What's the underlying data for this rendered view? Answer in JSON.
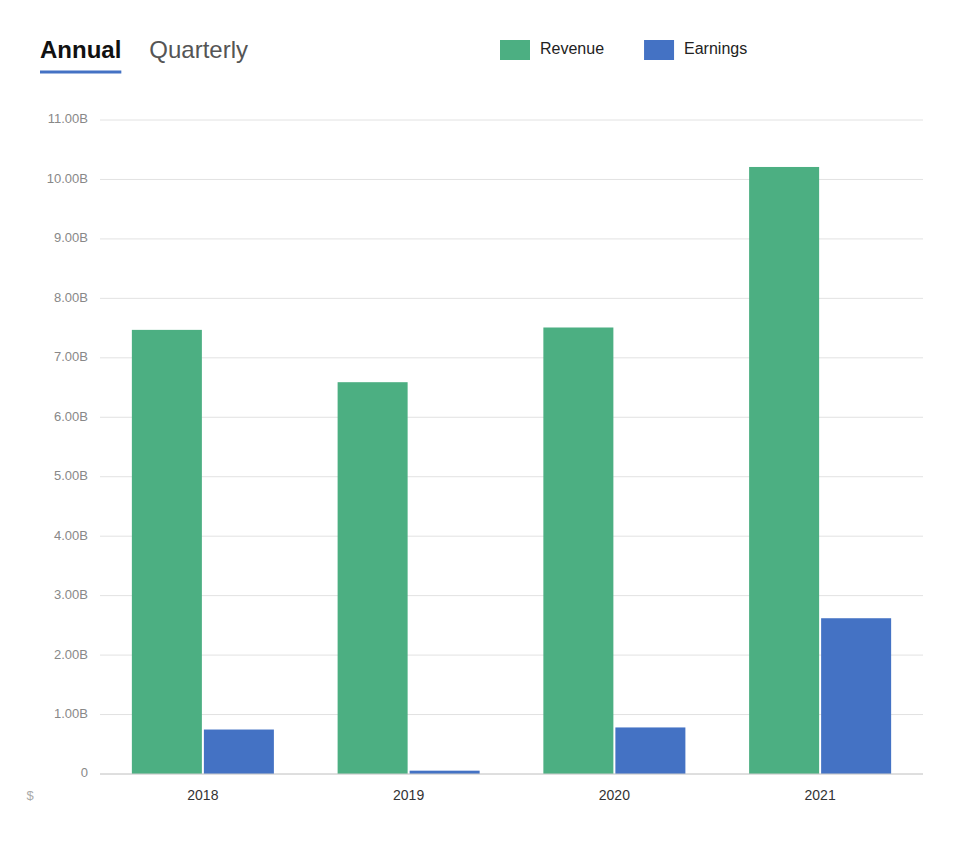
{
  "chart_data": {
    "type": "bar",
    "title": "Annual",
    "subtitle": "Quarterly",
    "ylabel": "$",
    "categories": [
      "2018",
      "2019",
      "2020",
      "2021"
    ],
    "series": [
      {
        "name": "Revenue",
        "color": "#4CAF82",
        "values": [
          7470000000.0,
          6590000000.0,
          7510000000.0,
          10210000000.0
        ]
      },
      {
        "name": "Earnings",
        "color": "#4472C4",
        "values": [
          748000000.0,
          56000000.0,
          783000000.0,
          2620000000.0
        ]
      }
    ],
    "ylim": [
      0,
      11000000000
    ],
    "yticks": [
      0,
      {
        "value": 1000000000,
        "label": "1.00B"
      },
      {
        "value": 2000000000,
        "label": "2.00B"
      },
      {
        "value": 3000000000,
        "label": "3.00B"
      },
      {
        "value": 4000000000,
        "label": "4.00B"
      },
      {
        "value": 5000000000,
        "label": "5.00B"
      },
      {
        "value": 6000000000,
        "label": "6.00B"
      },
      {
        "value": 7000000000,
        "label": "7.00B"
      },
      {
        "value": 8000000000,
        "label": "8.00B"
      },
      {
        "value": 9000000000,
        "label": "9.00B"
      },
      {
        "value": 10000000000,
        "label": "10.00B"
      },
      {
        "value": 11000000000,
        "label": "11.00B"
      }
    ],
    "grid": true,
    "legend": "top"
  }
}
